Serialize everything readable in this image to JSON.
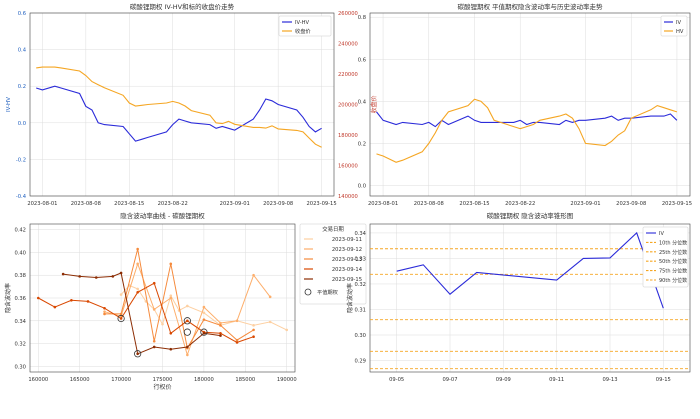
{
  "chart_data": [
    {
      "type": "line",
      "title": "碳酸锂期权 IV-HV和标的收盘价走势",
      "xlabel": "",
      "ylabel": "IV-HV",
      "y2label": "收盘价",
      "ylim": [
        -0.4,
        0.6
      ],
      "y2lim": [
        140000,
        260000
      ],
      "xlim": [
        "2023-07-30",
        "2023-09-17"
      ],
      "x_ticks": [
        "2023-08-01",
        "2023-08-08",
        "2023-08-15",
        "2023-08-22",
        "2023-09-01",
        "2023-09-08",
        "2023-09-15"
      ],
      "y_ticks": [
        -0.4,
        -0.2,
        0.0,
        0.2,
        0.4,
        0.6
      ],
      "y2_ticks": [
        140000,
        160000,
        180000,
        200000,
        220000,
        240000,
        260000
      ],
      "legend_position": "top-right",
      "grid": true,
      "series": [
        {
          "name": "IV-HV",
          "axis": "left",
          "color": "#2b2bd9",
          "x": [
            "2023-07-31",
            "2023-08-01",
            "2023-08-03",
            "2023-08-04",
            "2023-08-07",
            "2023-08-08",
            "2023-08-09",
            "2023-08-10",
            "2023-08-11",
            "2023-08-14",
            "2023-08-15",
            "2023-08-16",
            "2023-08-17",
            "2023-08-18",
            "2023-08-21",
            "2023-08-22",
            "2023-08-23",
            "2023-08-24",
            "2023-08-25",
            "2023-08-28",
            "2023-08-29",
            "2023-08-30",
            "2023-08-31",
            "2023-09-01",
            "2023-09-04",
            "2023-09-05",
            "2023-09-06",
            "2023-09-07",
            "2023-09-08",
            "2023-09-11",
            "2023-09-12",
            "2023-09-13",
            "2023-09-14",
            "2023-09-15"
          ],
          "values": [
            0.19,
            0.18,
            0.2,
            0.19,
            0.16,
            0.09,
            0.07,
            0.0,
            -0.01,
            -0.02,
            -0.06,
            -0.1,
            -0.09,
            -0.08,
            -0.05,
            -0.01,
            0.02,
            0.01,
            0.0,
            -0.01,
            -0.03,
            -0.02,
            -0.03,
            -0.04,
            0.02,
            0.07,
            0.13,
            0.12,
            0.1,
            0.07,
            0.03,
            -0.02,
            -0.05,
            -0.03
          ]
        },
        {
          "name": "收盘价",
          "axis": "right",
          "color": "#f5a623",
          "x": [
            "2023-07-31",
            "2023-08-01",
            "2023-08-03",
            "2023-08-04",
            "2023-08-07",
            "2023-08-08",
            "2023-08-09",
            "2023-08-10",
            "2023-08-11",
            "2023-08-14",
            "2023-08-15",
            "2023-08-16",
            "2023-08-17",
            "2023-08-18",
            "2023-08-21",
            "2023-08-22",
            "2023-08-23",
            "2023-08-24",
            "2023-08-25",
            "2023-08-28",
            "2023-08-29",
            "2023-08-30",
            "2023-08-31",
            "2023-09-01",
            "2023-09-04",
            "2023-09-05",
            "2023-09-06",
            "2023-09-07",
            "2023-09-08",
            "2023-09-11",
            "2023-09-12",
            "2023-09-13",
            "2023-09-14",
            "2023-09-15"
          ],
          "values": [
            224000,
            224500,
            224500,
            224000,
            222000,
            219000,
            215000,
            213000,
            211000,
            206000,
            201000,
            199000,
            199500,
            200000,
            201000,
            202000,
            201000,
            199000,
            196000,
            193000,
            188000,
            187500,
            189000,
            187000,
            185000,
            185000,
            184500,
            186000,
            184000,
            183000,
            182000,
            178000,
            174000,
            172000
          ]
        }
      ]
    },
    {
      "type": "line",
      "title": "碳酸锂期权 平值期权隐含波动率与历史波动率走势",
      "xlabel": "",
      "ylabel": "",
      "ylim": [
        -0.05,
        0.82
      ],
      "xlim": [
        "2023-07-30",
        "2023-09-17"
      ],
      "x_ticks": [
        "2023-08-01",
        "2023-08-08",
        "2023-08-15",
        "2023-08-22",
        "2023-09-01",
        "2023-09-08",
        "2023-09-15"
      ],
      "y_ticks": [
        0.0,
        0.2,
        0.4,
        0.6,
        0.8
      ],
      "legend_position": "top-right",
      "grid": true,
      "series": [
        {
          "name": "IV",
          "color": "#2b2bd9",
          "x": [
            "2023-07-31",
            "2023-08-01",
            "2023-08-03",
            "2023-08-04",
            "2023-08-07",
            "2023-08-08",
            "2023-08-09",
            "2023-08-10",
            "2023-08-11",
            "2023-08-14",
            "2023-08-15",
            "2023-08-16",
            "2023-08-17",
            "2023-08-18",
            "2023-08-21",
            "2023-08-22",
            "2023-08-23",
            "2023-08-24",
            "2023-08-25",
            "2023-08-28",
            "2023-08-29",
            "2023-08-30",
            "2023-08-31",
            "2023-09-01",
            "2023-09-04",
            "2023-09-05",
            "2023-09-06",
            "2023-09-07",
            "2023-09-08",
            "2023-09-11",
            "2023-09-12",
            "2023-09-13",
            "2023-09-14",
            "2023-09-15"
          ],
          "values": [
            0.35,
            0.31,
            0.29,
            0.3,
            0.29,
            0.3,
            0.28,
            0.31,
            0.29,
            0.33,
            0.31,
            0.3,
            0.3,
            0.3,
            0.3,
            0.31,
            0.29,
            0.3,
            0.3,
            0.29,
            0.31,
            0.3,
            0.31,
            0.31,
            0.32,
            0.33,
            0.31,
            0.32,
            0.32,
            0.33,
            0.33,
            0.33,
            0.34,
            0.31
          ]
        },
        {
          "name": "HV",
          "color": "#f5a623",
          "x": [
            "2023-07-31",
            "2023-08-01",
            "2023-08-03",
            "2023-08-04",
            "2023-08-07",
            "2023-08-08",
            "2023-08-09",
            "2023-08-10",
            "2023-08-11",
            "2023-08-14",
            "2023-08-15",
            "2023-08-16",
            "2023-08-17",
            "2023-08-18",
            "2023-08-21",
            "2023-08-22",
            "2023-08-23",
            "2023-08-24",
            "2023-08-25",
            "2023-08-28",
            "2023-08-29",
            "2023-08-30",
            "2023-08-31",
            "2023-09-01",
            "2023-09-04",
            "2023-09-05",
            "2023-09-06",
            "2023-09-07",
            "2023-09-08",
            "2023-09-11",
            "2023-09-12",
            "2023-09-13",
            "2023-09-14",
            "2023-09-15"
          ],
          "values": [
            0.15,
            0.14,
            0.11,
            0.12,
            0.16,
            0.2,
            0.25,
            0.31,
            0.35,
            0.38,
            0.41,
            0.4,
            0.37,
            0.31,
            0.28,
            0.27,
            0.28,
            0.29,
            0.31,
            0.33,
            0.34,
            0.32,
            0.27,
            0.2,
            0.19,
            0.21,
            0.24,
            0.26,
            0.32,
            0.36,
            0.38,
            0.37,
            0.36,
            0.35
          ]
        }
      ]
    },
    {
      "type": "line",
      "title": "隐含波动率曲线 - 碳酸锂期权",
      "xlabel": "行权价",
      "ylabel": "隐含波动率",
      "xlim": [
        159000,
        191000
      ],
      "ylim": [
        0.295,
        0.425
      ],
      "x_ticks": [
        160000,
        165000,
        170000,
        175000,
        180000,
        185000,
        190000
      ],
      "y_ticks": [
        0.3,
        0.32,
        0.34,
        0.36,
        0.38,
        0.4,
        0.42
      ],
      "legend_title": "交易日期",
      "legend_position": "top-right",
      "grid": true,
      "series": [
        {
          "name": "2023-09-11",
          "color": "#fdd0a2",
          "x": [
            170000,
            171000,
            172000,
            173000,
            174000,
            175000,
            176000,
            177000,
            178000,
            180000,
            182000,
            184000,
            186000,
            188000,
            190000
          ],
          "values": [
            0.363,
            0.371,
            0.368,
            0.357,
            0.35,
            0.337,
            0.362,
            0.349,
            0.353,
            0.347,
            0.336,
            0.34,
            0.336,
            0.339,
            0.332
          ]
        },
        {
          "name": "2023-09-12",
          "color": "#fdae6b",
          "x": [
            168000,
            170000,
            172000,
            174000,
            176000,
            178000,
            180000,
            182000,
            184000,
            186000,
            188000
          ],
          "values": [
            0.348,
            0.344,
            0.39,
            0.35,
            0.36,
            0.31,
            0.352,
            0.338,
            0.34,
            0.38,
            0.361
          ]
        },
        {
          "name": "2023-09-13",
          "color": "#f58a3c",
          "x": [
            168000,
            170000,
            172000,
            174000,
            176000,
            178000,
            180000,
            182000,
            184000,
            186000
          ],
          "values": [
            0.346,
            0.346,
            0.403,
            0.322,
            0.39,
            0.316,
            0.341,
            0.336,
            0.323,
            0.332
          ]
        },
        {
          "name": "2023-09-14",
          "color": "#d94801",
          "x": [
            160000,
            162000,
            164000,
            166000,
            168000,
            170000,
            172000,
            174000,
            176000,
            178000,
            180000,
            182000,
            184000,
            186000
          ],
          "values": [
            0.36,
            0.352,
            0.358,
            0.357,
            0.351,
            0.342,
            0.365,
            0.373,
            0.329,
            0.34,
            0.33,
            0.329,
            0.321,
            0.326
          ]
        },
        {
          "name": "2023-09-15",
          "color": "#8c2d04",
          "x": [
            163000,
            165000,
            167000,
            169000,
            170000,
            172000,
            174000,
            176000,
            178000,
            180000,
            182000
          ],
          "values": [
            0.381,
            0.379,
            0.378,
            0.379,
            0.382,
            0.311,
            0.317,
            0.315,
            0.317,
            0.329,
            0.327
          ]
        }
      ],
      "markers": {
        "label": "平值期权",
        "points": [
          [
            170000,
            0.342
          ],
          [
            172000,
            0.311
          ],
          [
            178000,
            0.34
          ],
          [
            178000,
            0.33
          ],
          [
            180000,
            0.33
          ]
        ]
      }
    },
    {
      "type": "line",
      "title": "碳酸锂期权 隐含波动率锥形图",
      "xlabel": "",
      "ylabel": "隐含波动率",
      "xlim": [
        "2023-09-04",
        "2023-09-16"
      ],
      "ylim": [
        0.2855,
        0.3435
      ],
      "x_ticks": [
        "09-05",
        "09-07",
        "09-09",
        "09-11",
        "09-13",
        "09-15"
      ],
      "y_ticks": [
        0.29,
        0.3,
        0.31,
        0.32,
        0.33,
        0.34
      ],
      "legend_position": "top-right",
      "grid": true,
      "series": [
        {
          "name": "IV",
          "color": "#2b2bd9",
          "x": [
            "2023-09-05",
            "2023-09-06",
            "2023-09-07",
            "2023-09-08",
            "2023-09-11",
            "2023-09-12",
            "2023-09-13",
            "2023-09-14",
            "2023-09-15"
          ],
          "values": [
            0.325,
            0.3275,
            0.316,
            0.3245,
            0.3215,
            0.33,
            0.3302,
            0.34,
            0.3105
          ]
        }
      ],
      "percentiles": [
        {
          "name": "10th 分位数",
          "value": 0.2868
        },
        {
          "name": "25th 分位数",
          "value": 0.2936
        },
        {
          "name": "50th 分位数",
          "value": 0.306
        },
        {
          "name": "75th 分位数",
          "value": 0.3238
        },
        {
          "name": "90th 分位数",
          "value": 0.3338
        }
      ]
    }
  ]
}
